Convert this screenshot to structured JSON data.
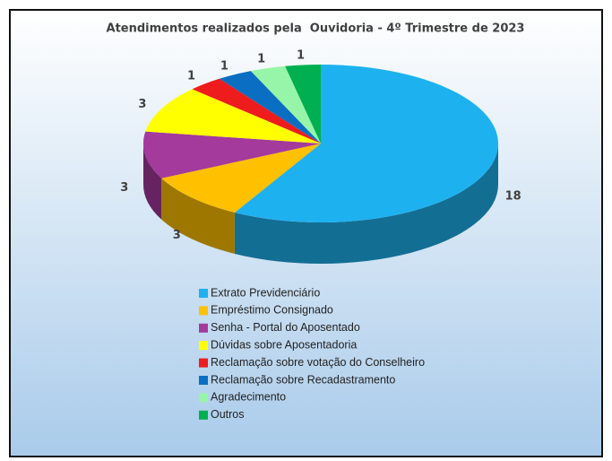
{
  "chart_data": {
    "type": "pie3d",
    "title": "Atendimentos realizados pela  Ouvidoria - 4º Trimestre de 2023",
    "categories": [
      "Extrato Previdenciário",
      "Empréstimo Consignado",
      "Senha - Portal do Aposentado",
      "Dúvidas sobre Aposentadoria",
      "Reclamação sobre votação do Conselheiro",
      "Reclamação sobre Recadastramento",
      "Agradecimento",
      "Outros"
    ],
    "values": [
      18,
      3,
      3,
      3,
      1,
      1,
      1,
      1
    ],
    "colors": [
      "#1eb1ef",
      "#ffc000",
      "#a33a9c",
      "#ffff00",
      "#ee1c1c",
      "#0a6fc2",
      "#96f5a8",
      "#00b050"
    ],
    "legend": "bottom"
  }
}
